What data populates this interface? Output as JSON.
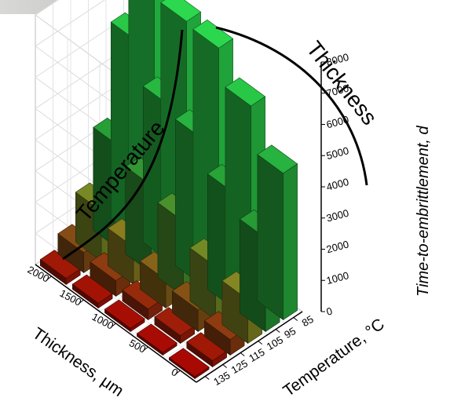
{
  "chart_data": {
    "type": "bar3d",
    "x_axis": {
      "label": "Temperature, °C",
      "ticks": [
        "85",
        "95",
        "105",
        "115",
        "125",
        "135"
      ]
    },
    "y_axis": {
      "label": "Thickness, μm",
      "ticks": [
        "0",
        "500",
        "1000",
        "1500",
        "2000"
      ]
    },
    "z_axis": {
      "label": "Time-to-embrittlement, d",
      "ticks": [
        "0",
        "1000",
        "2000",
        "3000",
        "4000",
        "5000",
        "6000",
        "7000",
        "8000"
      ],
      "zlim": [
        0,
        8000
      ]
    },
    "annotations": [
      "Temperature",
      "Thickness"
    ],
    "color_scale": [
      "#8b0000",
      "#6b3a10",
      "#6e6a1a",
      "#1f7a2a",
      "#22b340"
    ],
    "bars": [
      {
        "thickness": 2000,
        "temperature": 85,
        "value": 7800
      },
      {
        "thickness": 2000,
        "temperature": 95,
        "value": 6300
      },
      {
        "thickness": 2000,
        "temperature": 105,
        "value": 3300
      },
      {
        "thickness": 2000,
        "temperature": 115,
        "value": 1600
      },
      {
        "thickness": 2000,
        "temperature": 125,
        "value": 650
      },
      {
        "thickness": 2000,
        "temperature": 135,
        "value": 200
      },
      {
        "thickness": 1500,
        "temperature": 85,
        "value": 7300
      },
      {
        "thickness": 1500,
        "temperature": 95,
        "value": 5000
      },
      {
        "thickness": 1500,
        "temperature": 105,
        "value": 2800
      },
      {
        "thickness": 1500,
        "temperature": 115,
        "value": 1200
      },
      {
        "thickness": 1500,
        "temperature": 125,
        "value": 500
      },
      {
        "thickness": 1500,
        "temperature": 135,
        "value": 160
      },
      {
        "thickness": 1000,
        "temperature": 85,
        "value": 7200
      },
      {
        "thickness": 1000,
        "temperature": 95,
        "value": 4700
      },
      {
        "thickness": 1000,
        "temperature": 105,
        "value": 2400
      },
      {
        "thickness": 1000,
        "temperature": 115,
        "value": 900
      },
      {
        "thickness": 1000,
        "temperature": 125,
        "value": 350
      },
      {
        "thickness": 1000,
        "temperature": 135,
        "value": 110
      },
      {
        "thickness": 500,
        "temperature": 85,
        "value": 6100
      },
      {
        "thickness": 500,
        "temperature": 95,
        "value": 3700
      },
      {
        "thickness": 500,
        "temperature": 105,
        "value": 1700
      },
      {
        "thickness": 500,
        "temperature": 115,
        "value": 700
      },
      {
        "thickness": 500,
        "temperature": 125,
        "value": 250
      },
      {
        "thickness": 500,
        "temperature": 135,
        "value": 90
      },
      {
        "thickness": 0,
        "temperature": 85,
        "value": 4700
      },
      {
        "thickness": 0,
        "temperature": 95,
        "value": 3000
      },
      {
        "thickness": 0,
        "temperature": 105,
        "value": 1400
      },
      {
        "thickness": 0,
        "temperature": 115,
        "value": 500
      },
      {
        "thickness": 0,
        "temperature": 125,
        "value": 200
      },
      {
        "thickness": 0,
        "temperature": 135,
        "value": 70
      }
    ]
  }
}
